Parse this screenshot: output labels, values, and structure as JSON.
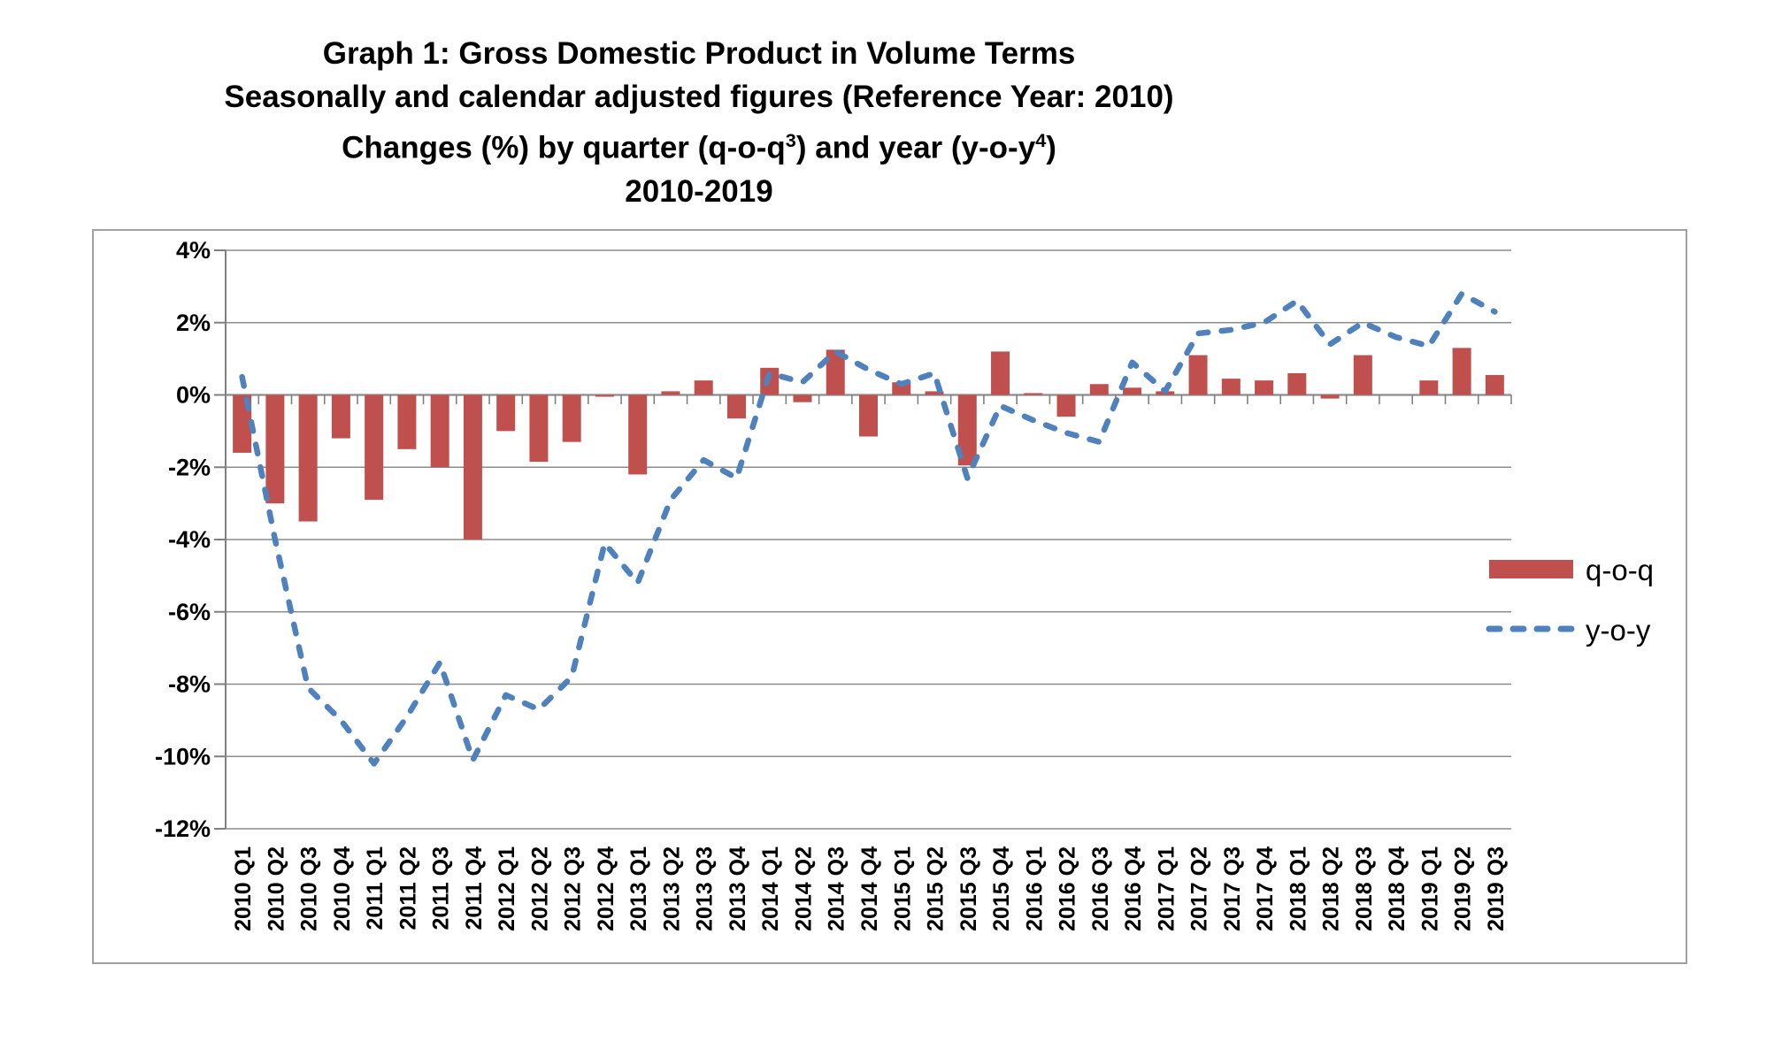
{
  "title": {
    "line1": "Graph 1: Gross Domestic Product in Volume Terms",
    "line2": "Seasonally and calendar adjusted figures (Reference Year: 2010)",
    "line3_prefix": "Changes (%) by quarter (q-o-q",
    "line3_sup1": "3",
    "line3_mid": ") and year (y-o-y",
    "line3_sup2": "4",
    "line3_suffix": ")",
    "line4": "2010-2019"
  },
  "legend": {
    "qoq_label": "q-o-q",
    "yoy_label": "y-o-y"
  },
  "colors": {
    "bar": "#C0504D",
    "line": "#4F81BD",
    "grid": "#8C8C8C",
    "axis": "#808080",
    "border": "#A0A0A0",
    "text": "#000000"
  },
  "chart_data": {
    "type": "bar",
    "subtype": "bar+dashed-line combo",
    "grid": true,
    "legend_position": "right",
    "ylim": [
      -12,
      4
    ],
    "y_tick_step": 2,
    "y_tick_labels": [
      "4%",
      "2%",
      "0%",
      "-2%",
      "-4%",
      "-6%",
      "-8%",
      "-10%",
      "-12%"
    ],
    "categories": [
      "2010 Q1",
      "2010 Q2",
      "2010 Q3",
      "2010 Q4",
      "2011 Q1",
      "2011 Q2",
      "2011 Q3",
      "2011 Q4",
      "2012 Q1",
      "2012 Q2",
      "2012 Q3",
      "2012 Q4",
      "2013 Q1",
      "2013 Q2",
      "2013 Q3",
      "2013 Q4",
      "2014 Q1",
      "2014 Q2",
      "2014 Q3",
      "2014 Q4",
      "2015 Q1",
      "2015 Q2",
      "2015 Q3",
      "2015 Q4",
      "2016 Q1",
      "2016 Q2",
      "2016 Q3",
      "2016 Q4",
      "2017 Q1",
      "2017 Q2",
      "2017 Q3",
      "2017 Q4",
      "2018 Q1",
      "2018 Q2",
      "2018 Q3",
      "2018 Q4",
      "2019 Q1",
      "2019 Q2",
      "2019 Q3"
    ],
    "series": [
      {
        "name": "q-o-q",
        "type": "bar",
        "values": [
          -1.6,
          -3.0,
          -3.5,
          -1.2,
          -2.9,
          -1.5,
          -2.0,
          -4.0,
          -1.0,
          -1.85,
          -1.3,
          -0.05,
          -2.2,
          0.1,
          0.4,
          -0.65,
          0.75,
          -0.2,
          1.25,
          -1.15,
          0.35,
          0.1,
          -1.95,
          1.2,
          0.05,
          -0.6,
          0.3,
          0.2,
          0.1,
          1.1,
          0.45,
          0.4,
          0.6,
          -0.1,
          1.1,
          0.0,
          0.4,
          1.3,
          0.55
        ]
      },
      {
        "name": "y-o-y",
        "type": "line",
        "dashed": true,
        "values": [
          0.5,
          -4.0,
          -8.1,
          -9.0,
          -10.2,
          -8.9,
          -7.4,
          -10.1,
          -8.3,
          -8.7,
          -7.8,
          -4.1,
          -5.2,
          -2.9,
          -1.8,
          -2.3,
          0.6,
          0.35,
          1.2,
          0.7,
          0.3,
          0.6,
          -2.3,
          -0.3,
          -0.7,
          -1.05,
          -1.3,
          0.9,
          0.1,
          1.7,
          1.8,
          2.0,
          2.6,
          1.4,
          2.0,
          1.6,
          1.35,
          2.8,
          2.3
        ]
      }
    ]
  }
}
